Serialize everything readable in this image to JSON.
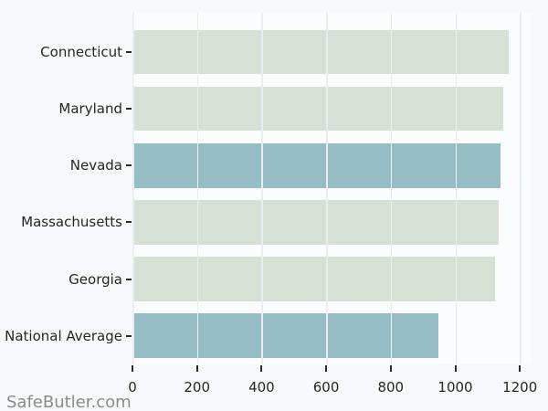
{
  "watermark": "SafeButler.com",
  "chart_data": {
    "type": "bar",
    "orientation": "horizontal",
    "title": "",
    "xlabel": "",
    "ylabel": "",
    "categories": [
      "Connecticut",
      "Maryland",
      "Nevada",
      "Massachusetts",
      "Georgia",
      "National Average"
    ],
    "values": [
      1166,
      1149,
      1139,
      1135,
      1124,
      948
    ],
    "bar_colors": [
      "#d6e0d4",
      "#d6e0d4",
      "#96bcc5",
      "#d6e0d4",
      "#d6e0d4",
      "#96bcc5"
    ],
    "default_bar_color": "#d6e0d4",
    "highlight_bar_color": "#96bcc5",
    "xticks": [
      0,
      200,
      400,
      600,
      800,
      1000,
      1200
    ],
    "xlim": [
      0,
      1237
    ],
    "grid": "vertical",
    "gridline_color": "#e9edf0",
    "legend": "none",
    "figure_background": "#f7f8f9",
    "plot_background": "#fbfcfd"
  }
}
